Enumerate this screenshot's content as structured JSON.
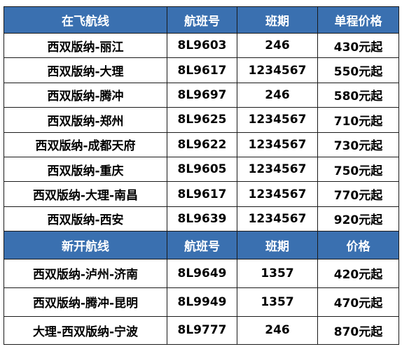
{
  "section1": {
    "headers": [
      "在飞航线",
      "航班号",
      "班期",
      "单程价格"
    ],
    "rows": [
      [
        "西双版纳-丽江",
        "8L9603",
        "246",
        "430元起"
      ],
      [
        "西双版纳-大理",
        "8L9617",
        "1234567",
        "550元起"
      ],
      [
        "西双版纳-腾冲",
        "8L9697",
        "246",
        "580元起"
      ],
      [
        "西双版纳-郑州",
        "8L9625",
        "1234567",
        "710元起"
      ],
      [
        "西双版纳-成都天府",
        "8L9622",
        "1234567",
        "730元起"
      ],
      [
        "西双版纳-重庆",
        "8L9605",
        "1234567",
        "750元起"
      ],
      [
        "西双版纳-大理-南昌",
        "8L9617",
        "1234567",
        "770元起"
      ],
      [
        "西双版纳-西安",
        "8L9639",
        "1234567",
        "920元起"
      ]
    ]
  },
  "section2": {
    "headers": [
      "新开航线",
      "航班号",
      "班期",
      "价格"
    ],
    "rows": [
      [
        "西双版纳-泸州-济南",
        "8L9649",
        "1357",
        "420元起"
      ],
      [
        "西双版纳-腾冲-昆明",
        "8L9949",
        "1357",
        "470元起"
      ],
      [
        "大理-西双版纳-宁波",
        "8L9777",
        "246",
        "870元起"
      ]
    ]
  },
  "colors": {
    "header_bg": "#3a70b0",
    "header_text": "#ffffff",
    "border": "#1a1a1a"
  }
}
